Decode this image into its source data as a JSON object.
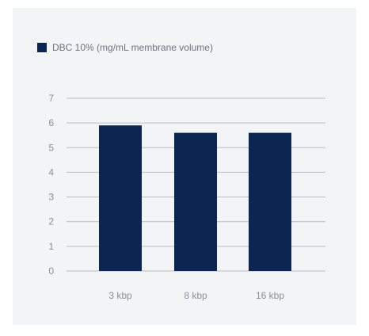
{
  "chart_data": {
    "type": "bar",
    "categories": [
      "3 kbp",
      "8 kbp",
      "16 kbp"
    ],
    "series": [
      {
        "name": "DBC 10% (mg/mL membrane volume)",
        "values": [
          5.9,
          5.6,
          5.6
        ]
      }
    ],
    "title": "",
    "xlabel": "",
    "ylabel": "",
    "ylim": [
      0,
      7
    ],
    "yticks": [
      0,
      1,
      2,
      3,
      4,
      5,
      6,
      7
    ],
    "grid": true,
    "legend_position": "top-left",
    "colors": {
      "bar": "#0b2650",
      "grid": "#b9bdc4",
      "panel": "#f3f4f6"
    }
  }
}
